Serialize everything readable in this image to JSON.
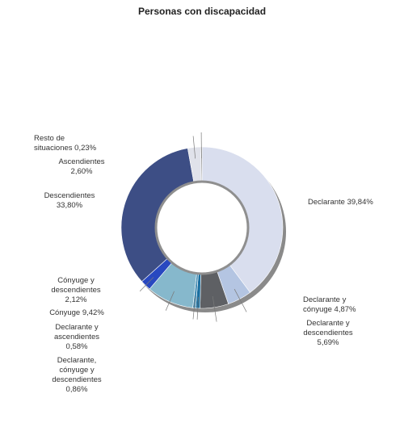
{
  "chart_data": {
    "type": "pie",
    "variant": "donut",
    "title": "Personas con discapacidad",
    "legend": "none",
    "slices": [
      {
        "label": "Declarante",
        "value": 39.84,
        "value_label": "39,84%",
        "color": "#d9deee",
        "text": "Declarante 39,84%"
      },
      {
        "label": "Declarante y cónyuge",
        "value": 4.87,
        "value_label": "4,87%",
        "color": "#b4c5e2",
        "text": "Declarante y\ncónyuge 4,87%"
      },
      {
        "label": "Declarante y descendientes",
        "value": 5.69,
        "value_label": "5,69%",
        "color": "#5e6064",
        "text": "Declarante y\ndescendientes\n5,69%"
      },
      {
        "label": "Declarante, cónyuge y descendientes",
        "value": 0.86,
        "value_label": "0,86%",
        "color": "#1a6fa0",
        "text": "Declarante,\ncónyuge y\ndescendientes\n0,86%"
      },
      {
        "label": "Declarante y ascendientes",
        "value": 0.58,
        "value_label": "0,58%",
        "color": "#4a90b5",
        "text": "Declarante y\nascendientes\n0,58%"
      },
      {
        "label": "Cónyuge",
        "value": 9.42,
        "value_label": "9,42%",
        "color": "#86b8cc",
        "text": "Cónyuge 9,42%"
      },
      {
        "label": "Cónyuge y descendientes",
        "value": 2.12,
        "value_label": "2,12%",
        "color": "#2848c0",
        "text": "Cónyuge y\ndescendientes\n2,12%"
      },
      {
        "label": "Descendientes",
        "value": 33.8,
        "value_label": "33,80%",
        "color": "#3d4e85",
        "text": "Descendientes\n33,80%"
      },
      {
        "label": "Ascendientes",
        "value": 2.6,
        "value_label": "2,60%",
        "color": "#e0e2ea",
        "text": "Ascendientes\n2,60%"
      },
      {
        "label": "Resto de situaciones",
        "value": 0.23,
        "value_label": "0,23%",
        "color": "#6a6a6a",
        "text": "Resto de\nsituaciones 0,23%"
      }
    ]
  }
}
